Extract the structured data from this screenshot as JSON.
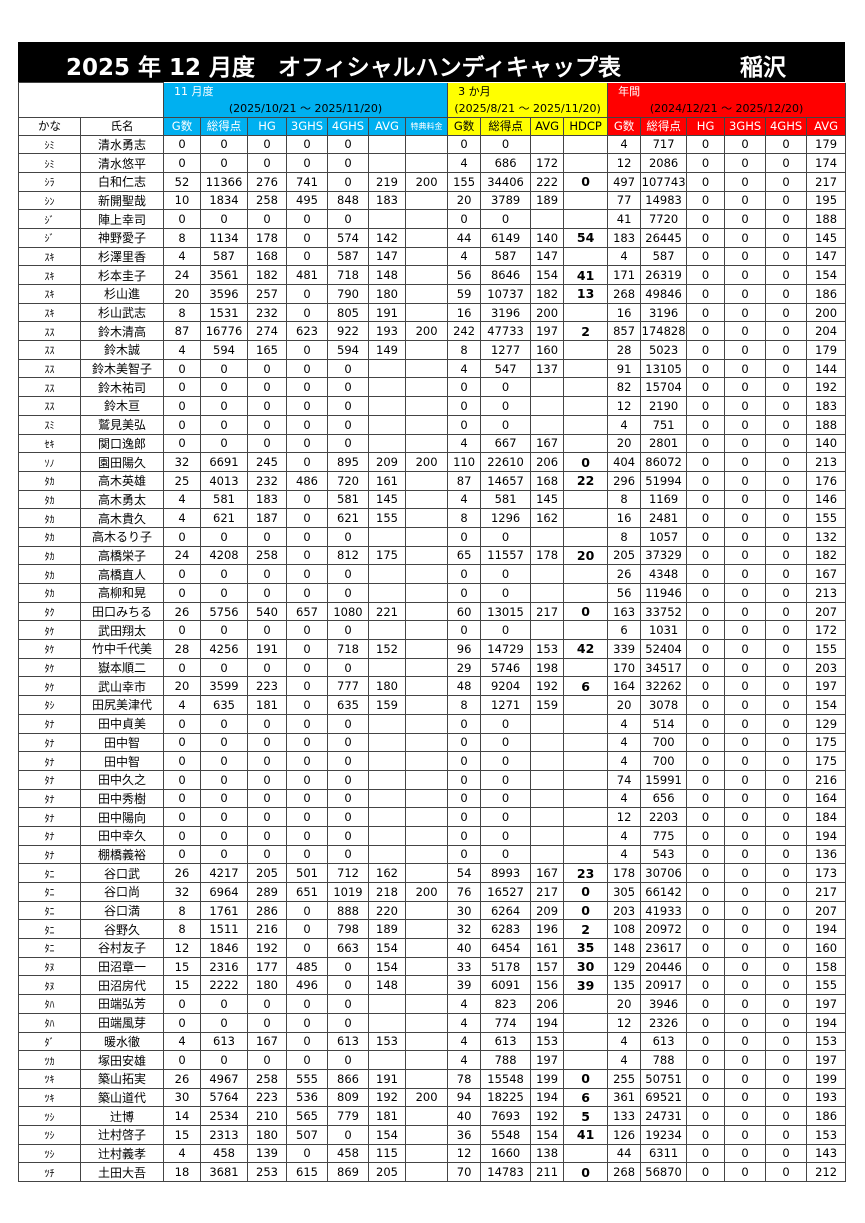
{
  "title": "2025 年 12 月度　オフィシャルハンディキャップ表",
  "location": "稲沢",
  "groups": [
    {
      "label": "11 月度",
      "range": "(2025/10/21 ～ 2025/11/20)"
    },
    {
      "label": "3 か月",
      "range": "(2025/8/21 ～ 2025/11/20)"
    },
    {
      "label": "年間",
      "range": "(2024/12/21 ～ 2025/12/20)"
    }
  ],
  "columns": [
    "かな",
    "氏名",
    "G数",
    "総得点",
    "HG",
    "3GHS",
    "4GHS",
    "AVG",
    "特典料金",
    "G数",
    "総得点",
    "AVG",
    "HDCP",
    "G数",
    "総得点",
    "HG",
    "3GHS",
    "4GHS",
    "AVG"
  ],
  "rows": [
    [
      "ｼﾐ",
      "清水勇志",
      0,
      0,
      0,
      0,
      0,
      null,
      null,
      0,
      0,
      null,
      null,
      4,
      717,
      0,
      0,
      0,
      179
    ],
    [
      "ｼﾐ",
      "清水悠平",
      0,
      0,
      0,
      0,
      0,
      null,
      null,
      4,
      686,
      172,
      null,
      12,
      2086,
      0,
      0,
      0,
      174
    ],
    [
      "ｼﾗ",
      "白和仁志",
      52,
      11366,
      276,
      741,
      0,
      219,
      200,
      155,
      34406,
      222,
      0,
      497,
      107743,
      0,
      0,
      0,
      217
    ],
    [
      "ｼﾝ",
      "新開聖哉",
      10,
      1834,
      258,
      495,
      848,
      183,
      null,
      20,
      3789,
      189,
      null,
      77,
      14983,
      0,
      0,
      0,
      195
    ],
    [
      "ｼﾞ",
      "陣上幸司",
      0,
      0,
      0,
      0,
      0,
      null,
      null,
      0,
      0,
      null,
      null,
      41,
      7720,
      0,
      0,
      0,
      188
    ],
    [
      "ｼﾞ",
      "神野愛子",
      8,
      1134,
      178,
      0,
      574,
      142,
      null,
      44,
      6149,
      140,
      54,
      183,
      26445,
      0,
      0,
      0,
      145
    ],
    [
      "ｽｷ",
      "杉澤里香",
      4,
      587,
      168,
      0,
      587,
      147,
      null,
      4,
      587,
      147,
      null,
      4,
      587,
      0,
      0,
      0,
      147
    ],
    [
      "ｽｷ",
      "杉本圭子",
      24,
      3561,
      182,
      481,
      718,
      148,
      null,
      56,
      8646,
      154,
      41,
      171,
      26319,
      0,
      0,
      0,
      154
    ],
    [
      "ｽｷ",
      "杉山進",
      20,
      3596,
      257,
      0,
      790,
      180,
      null,
      59,
      10737,
      182,
      13,
      268,
      49846,
      0,
      0,
      0,
      186
    ],
    [
      "ｽｷ",
      "杉山武志",
      8,
      1531,
      232,
      0,
      805,
      191,
      null,
      16,
      3196,
      200,
      null,
      16,
      3196,
      0,
      0,
      0,
      200
    ],
    [
      "ｽｽ",
      "鈴木清高",
      87,
      16776,
      274,
      623,
      922,
      193,
      200,
      242,
      47733,
      197,
      2,
      857,
      174828,
      0,
      0,
      0,
      204
    ],
    [
      "ｽｽ",
      "鈴木誠",
      4,
      594,
      165,
      0,
      594,
      149,
      null,
      8,
      1277,
      160,
      null,
      28,
      5023,
      0,
      0,
      0,
      179
    ],
    [
      "ｽｽ",
      "鈴木美智子",
      0,
      0,
      0,
      0,
      0,
      null,
      null,
      4,
      547,
      137,
      null,
      91,
      13105,
      0,
      0,
      0,
      144
    ],
    [
      "ｽｽ",
      "鈴木祐司",
      0,
      0,
      0,
      0,
      0,
      null,
      null,
      0,
      0,
      null,
      null,
      82,
      15704,
      0,
      0,
      0,
      192
    ],
    [
      "ｽｽ",
      "鈴木亘",
      0,
      0,
      0,
      0,
      0,
      null,
      null,
      0,
      0,
      null,
      null,
      12,
      2190,
      0,
      0,
      0,
      183
    ],
    [
      "ｽﾐ",
      "鷲見美弘",
      0,
      0,
      0,
      0,
      0,
      null,
      null,
      0,
      0,
      null,
      null,
      4,
      751,
      0,
      0,
      0,
      188
    ],
    [
      "ｾｷ",
      "関口逸郎",
      0,
      0,
      0,
      0,
      0,
      null,
      null,
      4,
      667,
      167,
      null,
      20,
      2801,
      0,
      0,
      0,
      140
    ],
    [
      "ｿﾉ",
      "園田陽久",
      32,
      6691,
      245,
      0,
      895,
      209,
      200,
      110,
      22610,
      206,
      0,
      404,
      86072,
      0,
      0,
      0,
      213
    ],
    [
      "ﾀｶ",
      "高木英雄",
      25,
      4013,
      232,
      486,
      720,
      161,
      null,
      87,
      14657,
      168,
      22,
      296,
      51994,
      0,
      0,
      0,
      176
    ],
    [
      "ﾀｶ",
      "高木勇太",
      4,
      581,
      183,
      0,
      581,
      145,
      null,
      4,
      581,
      145,
      null,
      8,
      1169,
      0,
      0,
      0,
      146
    ],
    [
      "ﾀｶ",
      "高木貴久",
      4,
      621,
      187,
      0,
      621,
      155,
      null,
      8,
      1296,
      162,
      null,
      16,
      2481,
      0,
      0,
      0,
      155
    ],
    [
      "ﾀｶ",
      "高木るり子",
      0,
      0,
      0,
      0,
      0,
      null,
      null,
      0,
      0,
      null,
      null,
      8,
      1057,
      0,
      0,
      0,
      132
    ],
    [
      "ﾀｶ",
      "高橋栄子",
      24,
      4208,
      258,
      0,
      812,
      175,
      null,
      65,
      11557,
      178,
      20,
      205,
      37329,
      0,
      0,
      0,
      182
    ],
    [
      "ﾀｶ",
      "高橋直人",
      0,
      0,
      0,
      0,
      0,
      null,
      null,
      0,
      0,
      null,
      null,
      26,
      4348,
      0,
      0,
      0,
      167
    ],
    [
      "ﾀｶ",
      "高柳和晃",
      0,
      0,
      0,
      0,
      0,
      null,
      null,
      0,
      0,
      null,
      null,
      56,
      11946,
      0,
      0,
      0,
      213
    ],
    [
      "ﾀｸ",
      "田口みちる",
      26,
      5756,
      540,
      657,
      1080,
      221,
      null,
      60,
      13015,
      217,
      0,
      163,
      33752,
      0,
      0,
      0,
      207
    ],
    [
      "ﾀｹ",
      "武田翔太",
      0,
      0,
      0,
      0,
      0,
      null,
      null,
      0,
      0,
      null,
      null,
      6,
      1031,
      0,
      0,
      0,
      172
    ],
    [
      "ﾀｹ",
      "竹中千代美",
      28,
      4256,
      191,
      0,
      718,
      152,
      null,
      96,
      14729,
      153,
      42,
      339,
      52404,
      0,
      0,
      0,
      155
    ],
    [
      "ﾀｹ",
      "嶽本順二",
      0,
      0,
      0,
      0,
      0,
      null,
      null,
      29,
      5746,
      198,
      null,
      170,
      34517,
      0,
      0,
      0,
      203
    ],
    [
      "ﾀｹ",
      "武山幸市",
      20,
      3599,
      223,
      0,
      777,
      180,
      null,
      48,
      9204,
      192,
      6,
      164,
      32262,
      0,
      0,
      0,
      197
    ],
    [
      "ﾀｼ",
      "田尻美津代",
      4,
      635,
      181,
      0,
      635,
      159,
      null,
      8,
      1271,
      159,
      null,
      20,
      3078,
      0,
      0,
      0,
      154
    ],
    [
      "ﾀﾅ",
      "田中貞美",
      0,
      0,
      0,
      0,
      0,
      null,
      null,
      0,
      0,
      null,
      null,
      4,
      514,
      0,
      0,
      0,
      129
    ],
    [
      "ﾀﾅ",
      "田中智",
      0,
      0,
      0,
      0,
      0,
      null,
      null,
      0,
      0,
      null,
      null,
      4,
      700,
      0,
      0,
      0,
      175
    ],
    [
      "ﾀﾅ",
      "田中智",
      0,
      0,
      0,
      0,
      0,
      null,
      null,
      0,
      0,
      null,
      null,
      4,
      700,
      0,
      0,
      0,
      175
    ],
    [
      "ﾀﾅ",
      "田中久之",
      0,
      0,
      0,
      0,
      0,
      null,
      null,
      0,
      0,
      null,
      null,
      74,
      15991,
      0,
      0,
      0,
      216
    ],
    [
      "ﾀﾅ",
      "田中秀樹",
      0,
      0,
      0,
      0,
      0,
      null,
      null,
      0,
      0,
      null,
      null,
      4,
      656,
      0,
      0,
      0,
      164
    ],
    [
      "ﾀﾅ",
      "田中陽向",
      0,
      0,
      0,
      0,
      0,
      null,
      null,
      0,
      0,
      null,
      null,
      12,
      2203,
      0,
      0,
      0,
      184
    ],
    [
      "ﾀﾅ",
      "田中幸久",
      0,
      0,
      0,
      0,
      0,
      null,
      null,
      0,
      0,
      null,
      null,
      4,
      775,
      0,
      0,
      0,
      194
    ],
    [
      "ﾀﾅ",
      "棚橋義裕",
      0,
      0,
      0,
      0,
      0,
      null,
      null,
      0,
      0,
      null,
      null,
      4,
      543,
      0,
      0,
      0,
      136
    ],
    [
      "ﾀﾆ",
      "谷口武",
      26,
      4217,
      205,
      501,
      712,
      162,
      null,
      54,
      8993,
      167,
      23,
      178,
      30706,
      0,
      0,
      0,
      173
    ],
    [
      "ﾀﾆ",
      "谷口尚",
      32,
      6964,
      289,
      651,
      1019,
      218,
      200,
      76,
      16527,
      217,
      0,
      305,
      66142,
      0,
      0,
      0,
      217
    ],
    [
      "ﾀﾆ",
      "谷口満",
      8,
      1761,
      286,
      0,
      888,
      220,
      null,
      30,
      6264,
      209,
      0,
      203,
      41933,
      0,
      0,
      0,
      207
    ],
    [
      "ﾀﾆ",
      "谷野久",
      8,
      1511,
      216,
      0,
      798,
      189,
      null,
      32,
      6283,
      196,
      2,
      108,
      20972,
      0,
      0,
      0,
      194
    ],
    [
      "ﾀﾆ",
      "谷村友子",
      12,
      1846,
      192,
      0,
      663,
      154,
      null,
      40,
      6454,
      161,
      35,
      148,
      23617,
      0,
      0,
      0,
      160
    ],
    [
      "ﾀﾇ",
      "田沼章一",
      15,
      2316,
      177,
      485,
      0,
      154,
      null,
      33,
      5178,
      157,
      30,
      129,
      20446,
      0,
      0,
      0,
      158
    ],
    [
      "ﾀﾇ",
      "田沼房代",
      15,
      2222,
      180,
      496,
      0,
      148,
      null,
      39,
      6091,
      156,
      39,
      135,
      20917,
      0,
      0,
      0,
      155
    ],
    [
      "ﾀﾊ",
      "田端弘芳",
      0,
      0,
      0,
      0,
      0,
      null,
      null,
      4,
      823,
      206,
      null,
      20,
      3946,
      0,
      0,
      0,
      197
    ],
    [
      "ﾀﾊ",
      "田端風芽",
      0,
      0,
      0,
      0,
      0,
      null,
      null,
      4,
      774,
      194,
      null,
      12,
      2326,
      0,
      0,
      0,
      194
    ],
    [
      "ﾀﾞ",
      "暖水徹",
      4,
      613,
      167,
      0,
      613,
      153,
      null,
      4,
      613,
      153,
      null,
      4,
      613,
      0,
      0,
      0,
      153
    ],
    [
      "ﾂｶ",
      "塚田安雄",
      0,
      0,
      0,
      0,
      0,
      null,
      null,
      4,
      788,
      197,
      null,
      4,
      788,
      0,
      0,
      0,
      197
    ],
    [
      "ﾂｷ",
      "築山拓実",
      26,
      4967,
      258,
      555,
      866,
      191,
      null,
      78,
      15548,
      199,
      0,
      255,
      50751,
      0,
      0,
      0,
      199
    ],
    [
      "ﾂｷ",
      "築山道代",
      30,
      5764,
      223,
      536,
      809,
      192,
      200,
      94,
      18225,
      194,
      6,
      361,
      69521,
      0,
      0,
      0,
      193
    ],
    [
      "ﾂｼ",
      "辻博",
      14,
      2534,
      210,
      565,
      779,
      181,
      null,
      40,
      7693,
      192,
      5,
      133,
      24731,
      0,
      0,
      0,
      186
    ],
    [
      "ﾂｼ",
      "辻村啓子",
      15,
      2313,
      180,
      507,
      0,
      154,
      null,
      36,
      5548,
      154,
      41,
      126,
      19234,
      0,
      0,
      0,
      153
    ],
    [
      "ﾂｼ",
      "辻村義孝",
      4,
      458,
      139,
      0,
      458,
      115,
      null,
      12,
      1660,
      138,
      null,
      44,
      6311,
      0,
      0,
      0,
      143
    ],
    [
      "ﾂﾁ",
      "土田大吾",
      18,
      3681,
      253,
      615,
      869,
      205,
      null,
      70,
      14783,
      211,
      0,
      268,
      56870,
      0,
      0,
      0,
      212
    ]
  ]
}
